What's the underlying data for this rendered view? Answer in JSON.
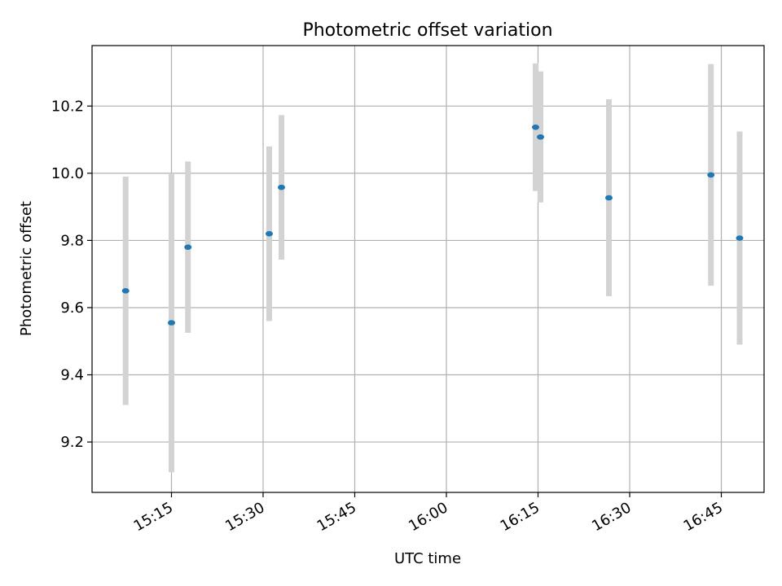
{
  "chart_data": {
    "type": "scatter",
    "title": "Photometric offset variation",
    "xlabel": "UTC time",
    "ylabel": "Photometric offset",
    "xlim": [
      "15:02",
      "16:52"
    ],
    "ylim": [
      9.05,
      10.38
    ],
    "grid": true,
    "x_ticks": [
      "15:15",
      "15:30",
      "15:45",
      "16:00",
      "16:15",
      "16:30",
      "16:45"
    ],
    "y_ticks": [
      9.2,
      9.4,
      9.6,
      9.8,
      10.0,
      10.2
    ],
    "marker_color": "#1f77b4",
    "errorbar_color": "#d3d3d3",
    "points": [
      {
        "x": "15:07.5",
        "y": 9.65,
        "yerr": 0.34
      },
      {
        "x": "15:15.0",
        "y": 9.555,
        "yerr": 0.445
      },
      {
        "x": "15:17.7",
        "y": 9.78,
        "yerr": 0.255
      },
      {
        "x": "15:31.0",
        "y": 9.82,
        "yerr": 0.26
      },
      {
        "x": "15:33.0",
        "y": 9.958,
        "yerr": 0.215
      },
      {
        "x": "16:14.6",
        "y": 10.137,
        "yerr": 0.19
      },
      {
        "x": "16:15.4",
        "y": 10.108,
        "yerr": 0.195
      },
      {
        "x": "16:26.6",
        "y": 9.927,
        "yerr": 0.293
      },
      {
        "x": "16:43.3",
        "y": 9.995,
        "yerr": 0.33
      },
      {
        "x": "16:48.0",
        "y": 9.807,
        "yerr": 0.317
      }
    ]
  }
}
